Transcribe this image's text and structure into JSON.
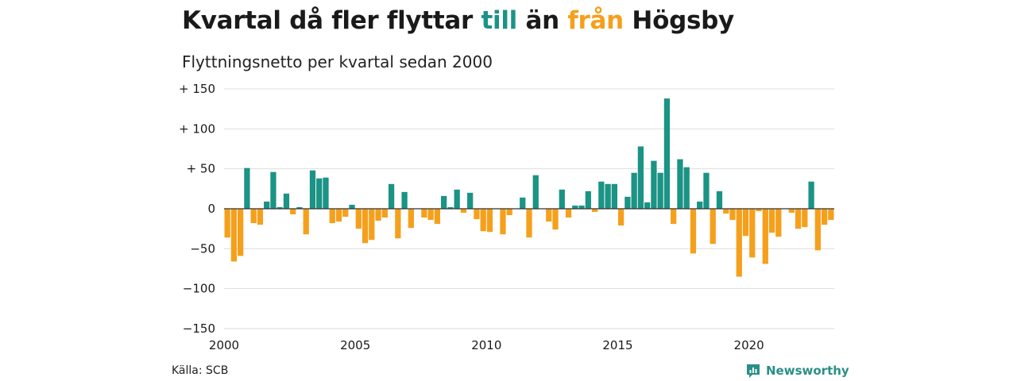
{
  "header": {
    "title_part1": "Kvartal då fler flyttar ",
    "title_in": "till",
    "title_part2": " än ",
    "title_out": "från",
    "title_part3": " Högsby",
    "subtitle": "Flyttningsnetto per kvartal sedan 2000"
  },
  "footer": {
    "source": "Källa: SCB",
    "brand": "Newsworthy",
    "brand_icon": "newsworthy-logo-icon"
  },
  "colors": {
    "positive": "#1b9385",
    "negative": "#f5a01c",
    "grid": "#dddddd",
    "zero": "#333333",
    "brand": "#2a8f87"
  },
  "chart_data": {
    "type": "bar",
    "title": "Kvartal då fler flyttar till än från Högsby",
    "subtitle": "Flyttningsnetto per kvartal sedan 2000",
    "xlabel": "",
    "ylabel": "",
    "ylim": [
      -150,
      150
    ],
    "yticks": [
      150,
      100,
      50,
      0,
      -50,
      -100,
      -150
    ],
    "ytick_labels": [
      "+ 150",
      "+ 100",
      "+  50",
      "0",
      "−50",
      "−100",
      "−150"
    ],
    "xticks": [
      2000,
      2005,
      2010,
      2015,
      2020
    ],
    "grid": true,
    "start": "2000 Q1",
    "frequency": "quarter",
    "values": [
      -36,
      -66,
      -59,
      51,
      -18,
      -20,
      9,
      46,
      2,
      19,
      -7,
      2,
      -32,
      48,
      38,
      39,
      -18,
      -16,
      -10,
      5,
      -25,
      -43,
      -39,
      -15,
      -11,
      31,
      -37,
      21,
      -24,
      0,
      -11,
      -14,
      -19,
      16,
      2,
      24,
      -5,
      20,
      -13,
      -28,
      -29,
      0,
      -32,
      -8,
      0,
      14,
      -36,
      42,
      0,
      -16,
      -26,
      24,
      -11,
      4,
      4,
      22,
      -4,
      34,
      31,
      31,
      -21,
      15,
      45,
      78,
      8,
      60,
      45,
      138,
      -19,
      62,
      52,
      -56,
      9,
      45,
      -44,
      22,
      -6,
      -14,
      -85,
      -34,
      -61,
      -3,
      -69,
      -30,
      -35,
      0,
      -5,
      -25,
      -23,
      34,
      -52,
      -20,
      -14
    ]
  }
}
